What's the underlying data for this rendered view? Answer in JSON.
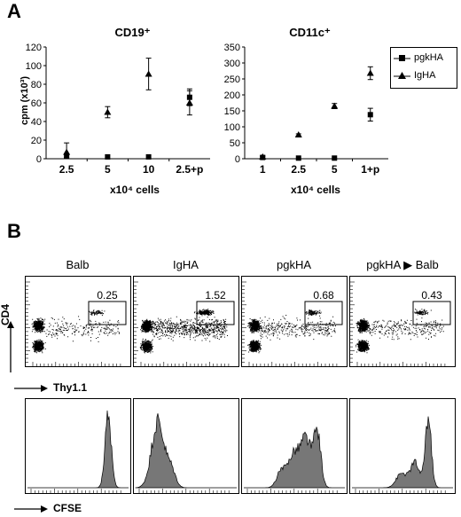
{
  "panels": {
    "a": "A",
    "b": "B"
  },
  "chart_data": [
    {
      "type": "scatter",
      "title": "CD19⁺",
      "ylabel": "cpm (x10³)",
      "xlabel": "x10⁴ cells",
      "categories": [
        "2.5",
        "5",
        "10",
        "2.5+p"
      ],
      "ylim": [
        0,
        120
      ],
      "yticks": [
        0,
        20,
        40,
        60,
        80,
        100,
        120
      ],
      "series": [
        {
          "name": "pgkHA",
          "marker": "square",
          "values": [
            3,
            2,
            2,
            66
          ],
          "errors": [
            2,
            0,
            0,
            9
          ]
        },
        {
          "name": "IgHA",
          "marker": "triangle",
          "values": [
            7,
            50,
            91,
            60
          ],
          "errors": [
            10,
            6,
            17,
            13
          ]
        }
      ]
    },
    {
      "type": "scatter",
      "title": "CD11c⁺",
      "xlabel": "x10⁴ cells",
      "categories": [
        "1",
        "2.5",
        "5",
        "1+p"
      ],
      "ylim": [
        0,
        350
      ],
      "yticks": [
        0,
        50,
        100,
        150,
        200,
        250,
        300,
        350
      ],
      "series": [
        {
          "name": "pgkHA",
          "marker": "square",
          "values": [
            4,
            2,
            2,
            138
          ],
          "errors": [
            3,
            0,
            0,
            20
          ]
        },
        {
          "name": "IgHA",
          "marker": "triangle",
          "values": [
            6,
            75,
            165,
            268
          ],
          "errors": [
            4,
            3,
            8,
            20
          ]
        }
      ]
    }
  ],
  "legend": {
    "items": [
      "pgkHA",
      "IgHA"
    ]
  },
  "facs": {
    "columns": [
      "Balb",
      "IgHA",
      "pgkHA",
      "pgkHA ▶ Balb"
    ],
    "gate_values": [
      "0.25",
      "1.52",
      "0.68",
      "0.43"
    ],
    "y_axis": "CD4",
    "x_axis": "Thy1.1",
    "hist_axis": "CFSE"
  }
}
